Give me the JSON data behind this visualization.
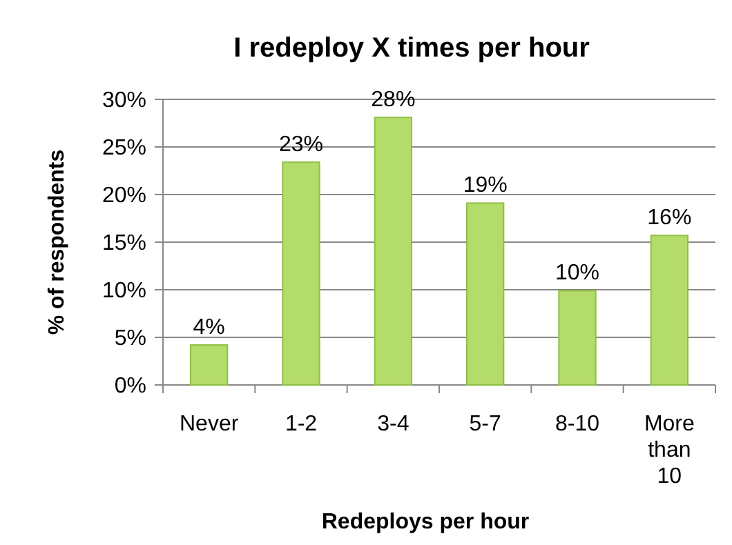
{
  "chart_data": {
    "type": "bar",
    "title": "I redeploy X times per hour",
    "xlabel": "Redeploys per hour",
    "ylabel": "% of respondents",
    "categories": [
      "Never",
      "1-2",
      "3-4",
      "5-7",
      "8-10",
      "More than 10"
    ],
    "values": [
      4.2,
      23.4,
      28.1,
      19.1,
      9.9,
      15.7
    ],
    "value_labels": [
      "4%",
      "23%",
      "28%",
      "19%",
      "10%",
      "16%"
    ],
    "color": "#b4dc6a",
    "ylim": [
      0,
      30
    ],
    "yticks": [
      {
        "value": 0,
        "label": "0%"
      },
      {
        "value": 5,
        "label": "5%"
      },
      {
        "value": 10,
        "label": "10%"
      },
      {
        "value": 15,
        "label": "15%"
      },
      {
        "value": 20,
        "label": "20%"
      },
      {
        "value": 25,
        "label": "25%"
      },
      {
        "value": 30,
        "label": "30%"
      }
    ],
    "grid": "y"
  }
}
